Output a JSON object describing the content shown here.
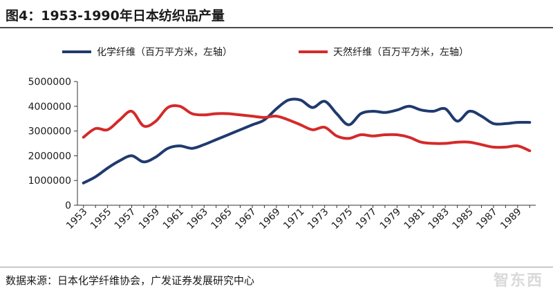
{
  "header": {
    "title": "图4：1953-1990年日本纺织品产量"
  },
  "footer": {
    "source": "数据来源：日本化学纤维协会，广发证券发展研究中心",
    "watermark": "智东西"
  },
  "chart_data": {
    "type": "line",
    "title": "图4：1953-1990年日本纺织品产量",
    "xlabel": "",
    "ylabel": "",
    "ylim": [
      0,
      5000000
    ],
    "yticks": [
      "0",
      "1000000",
      "2000000",
      "3000000",
      "4000000",
      "5000000"
    ],
    "xticks": [
      "1953",
      "1955",
      "1957",
      "1959",
      "1961",
      "1963",
      "1965",
      "1967",
      "1969",
      "1971",
      "1973",
      "1975",
      "1977",
      "1979",
      "1981",
      "1983",
      "1985",
      "1987",
      "1989"
    ],
    "grid": false,
    "legend": "top",
    "x": [
      1953,
      1954,
      1955,
      1956,
      1957,
      1958,
      1959,
      1960,
      1961,
      1962,
      1963,
      1964,
      1965,
      1966,
      1967,
      1968,
      1969,
      1970,
      1971,
      1972,
      1973,
      1974,
      1975,
      1976,
      1977,
      1978,
      1979,
      1980,
      1981,
      1982,
      1983,
      1984,
      1985,
      1986,
      1987,
      1988,
      1989,
      1990
    ],
    "series": [
      {
        "name": "化学纤维（百万平方米，左轴）",
        "color": "#1f3a6e",
        "values": [
          900000,
          1150000,
          1500000,
          1800000,
          2000000,
          1750000,
          1950000,
          2300000,
          2400000,
          2300000,
          2450000,
          2650000,
          2850000,
          3050000,
          3250000,
          3450000,
          3900000,
          4250000,
          4250000,
          3950000,
          4200000,
          3700000,
          3250000,
          3700000,
          3800000,
          3750000,
          3850000,
          4000000,
          3850000,
          3800000,
          3900000,
          3400000,
          3800000,
          3600000,
          3300000,
          3300000,
          3350000,
          3350000
        ]
      },
      {
        "name": "天然纤维（百万平方米，左轴）",
        "color": "#d42a2a",
        "values": [
          2750000,
          3100000,
          3050000,
          3450000,
          3800000,
          3200000,
          3400000,
          3950000,
          4000000,
          3700000,
          3650000,
          3700000,
          3700000,
          3650000,
          3600000,
          3550000,
          3600000,
          3450000,
          3250000,
          3050000,
          3150000,
          2800000,
          2700000,
          2850000,
          2800000,
          2850000,
          2850000,
          2750000,
          2550000,
          2500000,
          2500000,
          2550000,
          2550000,
          2450000,
          2350000,
          2350000,
          2400000,
          2200000
        ]
      }
    ]
  }
}
